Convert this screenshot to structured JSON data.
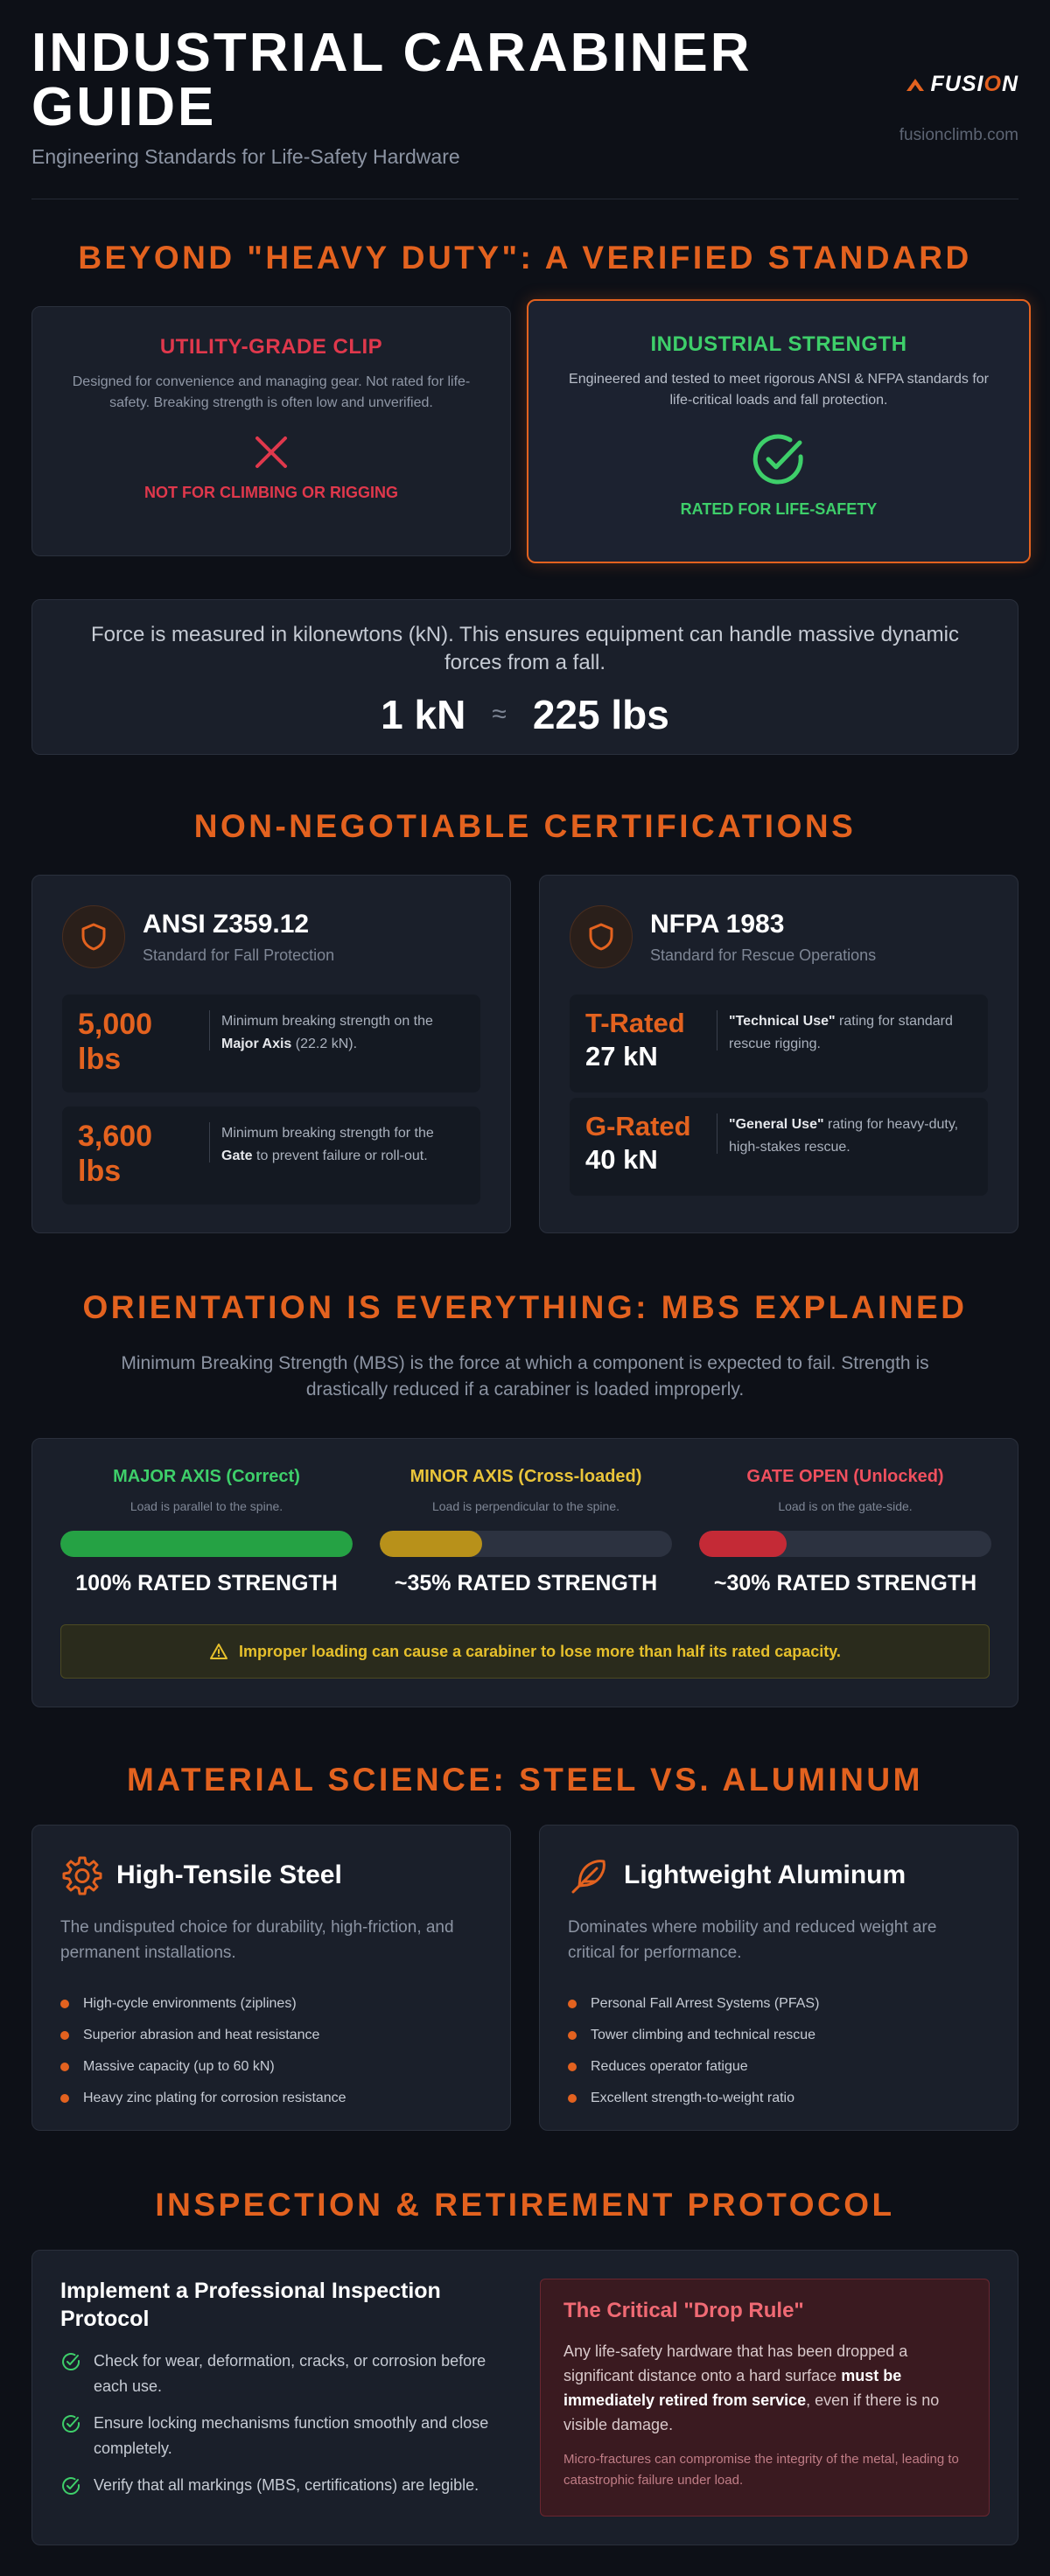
{
  "header": {
    "title": "INDUSTRIAL CARABINER GUIDE",
    "subtitle": "Engineering Standards for Life-Safety Hardware",
    "brand_prefix": "FUSI",
    "brand_accent": "O",
    "brand_suffix": "N",
    "site": "fusionclimb.com"
  },
  "standard": {
    "title": "BEYOND \"HEAVY DUTY\": A VERIFIED STANDARD",
    "utility": {
      "title": "UTILITY-GRADE CLIP",
      "text": "Designed for convenience and managing gear. Not rated for life-safety. Breaking strength is often low and unverified.",
      "icon": "x-icon",
      "verdict": "NOT FOR CLIMBING OR RIGGING"
    },
    "industrial": {
      "title": "INDUSTRIAL STRENGTH",
      "text": "Engineered and tested to meet rigorous ANSI & NFPA standards for life-critical loads and fall protection.",
      "icon": "check-circle-icon",
      "verdict": "RATED FOR LIFE-SAFETY"
    },
    "force": {
      "text": "Force is measured in kilonewtons (kN). This ensures equipment can handle massive dynamic forces from a fall.",
      "left": "1 kN",
      "approx": "≈",
      "right": "225 lbs"
    }
  },
  "certifications": {
    "title": "NON-NEGOTIABLE CERTIFICATIONS",
    "ansi": {
      "name": "ANSI Z359.12",
      "sub": "Standard for Fall Protection",
      "icon": "shield-icon",
      "stats": [
        {
          "value_1": "5,000",
          "value_2": "lbs",
          "desc_1": "Minimum breaking strength on the ",
          "desc_bold": "Major Axis",
          "desc_2": " (22.2 kN)."
        },
        {
          "value_1": "3,600",
          "value_2": "lbs",
          "desc_1": "Minimum breaking strength for the ",
          "desc_bold": "Gate",
          "desc_2": " to prevent failure or roll-out."
        }
      ]
    },
    "nfpa": {
      "name": "NFPA 1983",
      "sub": "Standard for Rescue Operations",
      "icon": "shield-icon",
      "stats": [
        {
          "value_1": "T-Rated",
          "value_2": "27 kN",
          "desc_bold": "\"Technical Use\"",
          "desc_2": " rating for standard rescue rigging."
        },
        {
          "value_1": "G-Rated",
          "value_2": "40 kN",
          "desc_bold": "\"General Use\"",
          "desc_2": " rating for heavy-duty, high-stakes rescue."
        }
      ]
    }
  },
  "orientation": {
    "title": "ORIENTATION IS EVERYTHING: MBS EXPLAINED",
    "intro": "Minimum Breaking Strength (MBS) is the force at which a component is expected to fail. Strength is drastically reduced if a carabiner is loaded improperly.",
    "axes": [
      {
        "name": "MAJOR AXIS (Correct)",
        "note": "Load is parallel to the spine.",
        "fill": 1.0,
        "strength": "100% RATED STRENGTH",
        "color": "#25a244"
      },
      {
        "name": "MINOR AXIS (Cross-loaded)",
        "note": "Load is perpendicular to the spine.",
        "fill": 0.35,
        "strength": "~35% RATED STRENGTH",
        "color": "#b8911a"
      },
      {
        "name": "GATE OPEN (Unlocked)",
        "note": "Load is on the gate-side.",
        "fill": 0.3,
        "strength": "~30% RATED STRENGTH",
        "color": "#c42a36"
      }
    ],
    "name_colors": [
      "#3ecf6a",
      "#e9c43a",
      "#f0505e"
    ],
    "warning": "Improper loading can cause a carabiner to lose more than half its rated capacity.",
    "warning_icon": "warning-triangle-icon"
  },
  "materials": {
    "title": "MATERIAL SCIENCE: STEEL VS. ALUMINUM",
    "steel": {
      "name": "High-Tensile Steel",
      "icon": "gear-icon",
      "desc": "The undisputed choice for durability, high-friction, and permanent installations.",
      "items": [
        "High-cycle environments (ziplines)",
        "Superior abrasion and heat resistance",
        "Massive capacity (up to 60 kN)",
        "Heavy zinc plating for corrosion resistance"
      ]
    },
    "aluminum": {
      "name": "Lightweight Aluminum",
      "icon": "feather-icon",
      "desc": "Dominates where mobility and reduced weight are critical for performance.",
      "items": [
        "Personal Fall Arrest Systems (PFAS)",
        "Tower climbing and technical rescue",
        "Reduces operator fatigue",
        "Excellent strength-to-weight ratio"
      ]
    }
  },
  "inspection": {
    "title": "INSPECTION & RETIREMENT PROTOCOL",
    "heading": "Implement a Professional Inspection Protocol",
    "checks": [
      "Check for wear, deformation, cracks, or corrosion before each use.",
      "Ensure locking mechanisms function smoothly and close completely.",
      "Verify that all markings (MBS, certifications) are legible."
    ],
    "drop": {
      "title": "The Critical \"Drop Rule\"",
      "body_1": "Any life-safety hardware that has been dropped a significant distance onto a hard surface ",
      "body_bold": "must be immediately retired from service",
      "body_2": ", even if there is no visible damage.",
      "fine": "Micro-fractures can compromise the integrity of the metal, leading to catastrophic failure under load."
    }
  },
  "colors": {
    "accent": "#e3621f",
    "background": "#0d1017",
    "card": "#1a1f2a",
    "success": "#3ecf6a",
    "danger": "#e0384c",
    "warning": "#e6c02c"
  }
}
